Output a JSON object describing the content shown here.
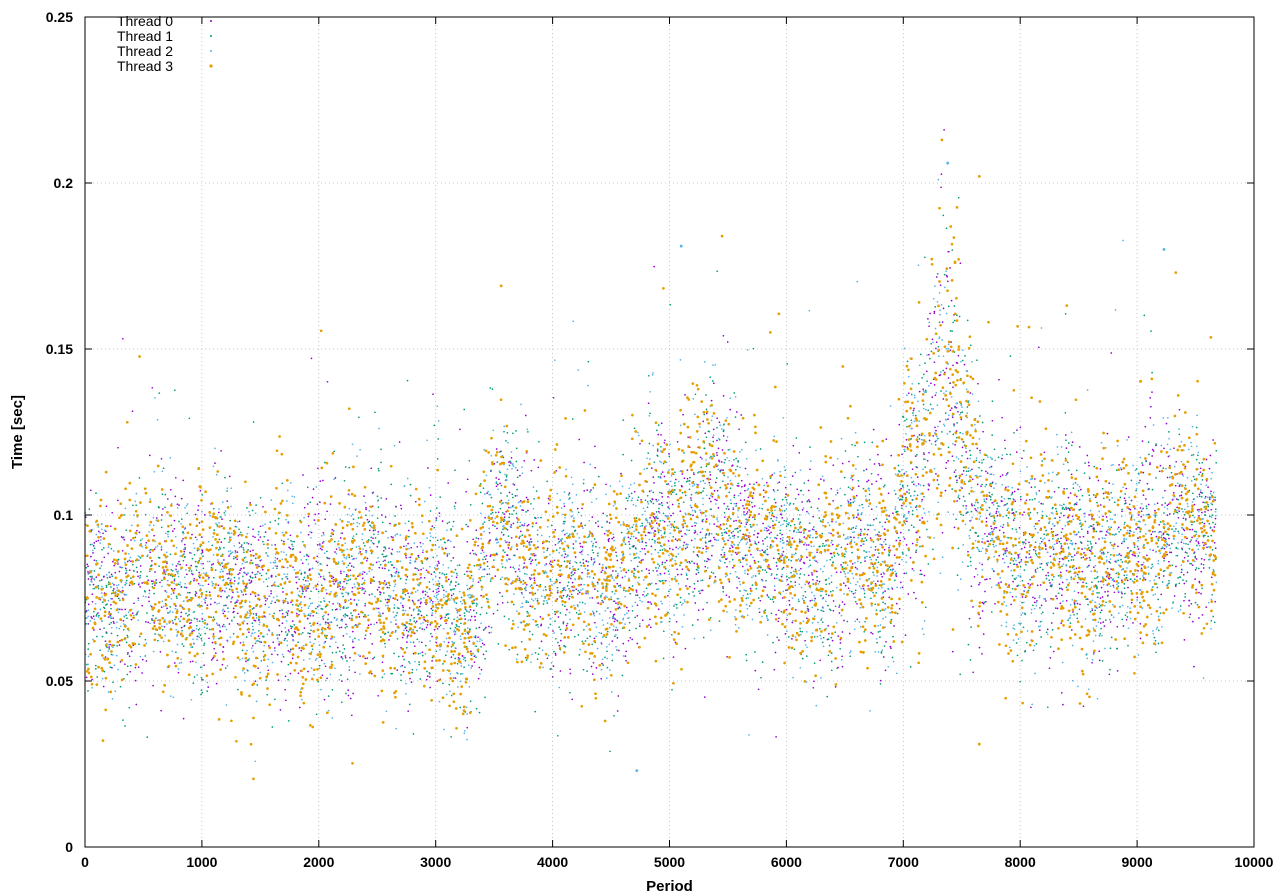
{
  "chart_data": {
    "type": "scatter",
    "title": "",
    "xlabel": "Period",
    "ylabel": "Time [sec]",
    "xlim": [
      0,
      10000
    ],
    "ylim": [
      0,
      0.25
    ],
    "xticks": [
      "0",
      "1000",
      "2000",
      "3000",
      "4000",
      "5000",
      "6000",
      "7000",
      "8000",
      "9000",
      "10000"
    ],
    "yticks": [
      "0",
      "0.05",
      "0.1",
      "0.15",
      "0.2",
      "0.25"
    ],
    "grid": true,
    "legend_position": "top-left",
    "x_range_of_points": [
      0,
      9680
    ],
    "series": [
      {
        "name": "Thread 0",
        "color": "#9400d3",
        "marker": "dot"
      },
      {
        "name": "Thread 1",
        "color": "#009e73",
        "marker": "dot"
      },
      {
        "name": "Thread 2",
        "color": "#56b4e9",
        "marker": "dot"
      },
      {
        "name": "Thread 3",
        "color": "#e69f00",
        "marker": "dot"
      }
    ],
    "trend": {
      "description_points": [
        [
          0,
          0.072
        ],
        [
          500,
          0.082
        ],
        [
          1000,
          0.08
        ],
        [
          1500,
          0.076
        ],
        [
          2000,
          0.076
        ],
        [
          2500,
          0.08
        ],
        [
          3000,
          0.072
        ],
        [
          3300,
          0.07
        ],
        [
          3500,
          0.098
        ],
        [
          3700,
          0.088
        ],
        [
          4000,
          0.08
        ],
        [
          4500,
          0.08
        ],
        [
          5000,
          0.096
        ],
        [
          5400,
          0.104
        ],
        [
          5800,
          0.09
        ],
        [
          6000,
          0.084
        ],
        [
          6500,
          0.086
        ],
        [
          6900,
          0.088
        ],
        [
          7000,
          0.104
        ],
        [
          7200,
          0.116
        ],
        [
          7350,
          0.15
        ],
        [
          7500,
          0.124
        ],
        [
          7650,
          0.096
        ],
        [
          8000,
          0.09
        ],
        [
          8500,
          0.086
        ],
        [
          9000,
          0.09
        ],
        [
          9300,
          0.1
        ],
        [
          9680,
          0.09
        ]
      ],
      "spikes": [
        {
          "x": 7330,
          "y": 0.213
        },
        {
          "x": 7380,
          "y": 0.206
        },
        {
          "x": 7650,
          "y": 0.202
        },
        {
          "x": 5100,
          "y": 0.181
        },
        {
          "x": 5450,
          "y": 0.184
        },
        {
          "x": 9230,
          "y": 0.18
        },
        {
          "x": 3560,
          "y": 0.169
        },
        {
          "x": 4720,
          "y": 0.023
        },
        {
          "x": 7650,
          "y": 0.031
        }
      ]
    }
  }
}
